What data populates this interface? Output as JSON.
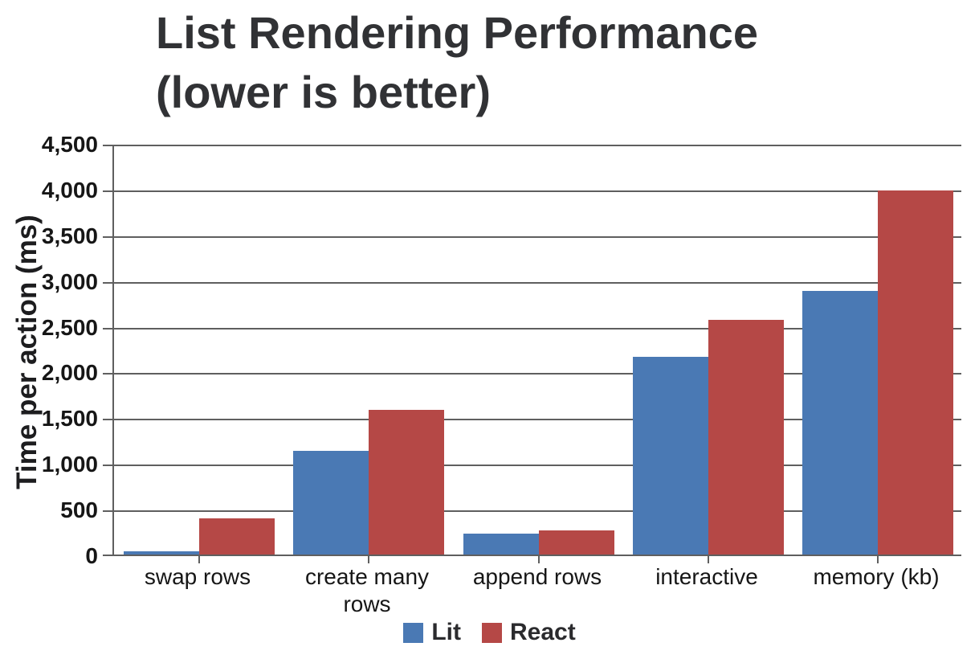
{
  "chart_data": {
    "type": "bar",
    "title": "List Rendering Performance\n(lower is better)",
    "ylabel": "Time per action (ms)",
    "xlabel": "",
    "categories": [
      "swap rows",
      "create many rows",
      "append rows",
      "interactive",
      "memory (kb)"
    ],
    "series": [
      {
        "name": "Lit",
        "color": "#4a79b4",
        "values": [
          50,
          1150,
          250,
          2180,
          2900
        ]
      },
      {
        "name": "React",
        "color": "#b54846",
        "values": [
          410,
          1600,
          280,
          2580,
          4000
        ]
      }
    ],
    "ylim": [
      0,
      4500
    ],
    "ytick_step": 500,
    "grid": true,
    "legend_position": "bottom",
    "colors": {
      "grid": "#5f5f5f",
      "title_text": "#313235",
      "tick_text": "#161616",
      "background": "#ffffff"
    }
  }
}
